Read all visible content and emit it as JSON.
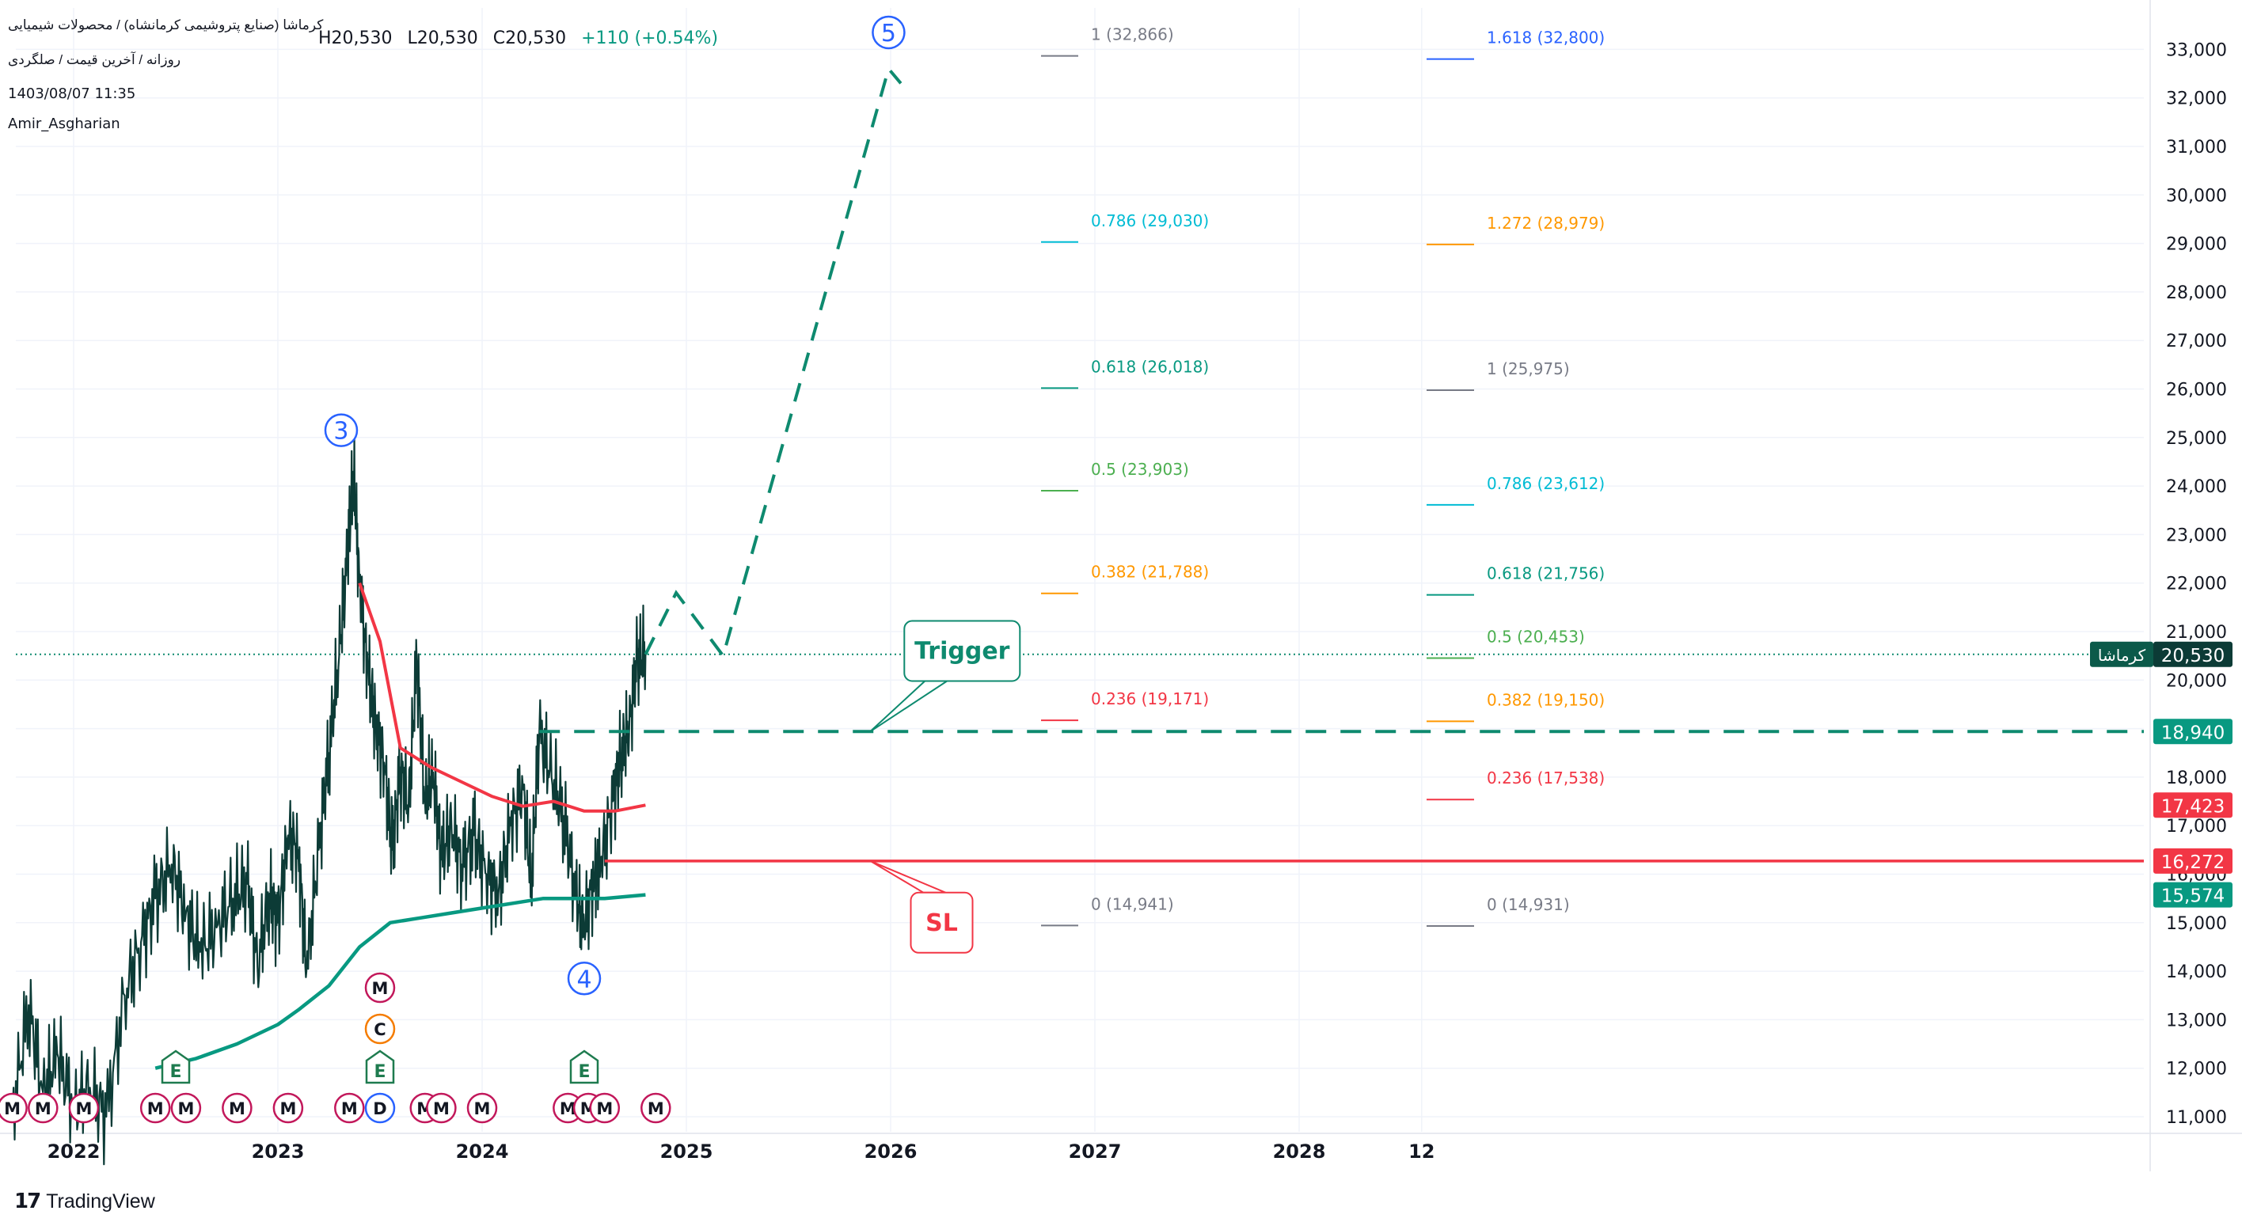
{
  "header": {
    "symbol_line": "کرماشا (صنایع پتروشیمی کرمانشاه) / محصولات شیمیایی",
    "high": "H20,530",
    "low": "L20,530",
    "close": "C20,530",
    "change": "+110 (+0.54%)",
    "sub_line": "روزانه / آخرین قیمت / صلگردی",
    "date": "1403/08/07 11:35",
    "author": "Amir_Asgharian"
  },
  "branding": {
    "name": "TradingView"
  },
  "colors": {
    "up": "#089981",
    "down": "#f23645",
    "ma_red": "#f23645",
    "ma_teal": "#089981",
    "candles": "#0c3b36",
    "target": "#0e8a6f",
    "wave_label": "#2962ff",
    "earnings": "#1e7b4f",
    "marker_m": "#c2185b",
    "marker_c": "#f57c00",
    "marker_d": "#2962ff"
  },
  "chart_data": {
    "type": "line",
    "title": "کرماشا",
    "x_axis": {
      "ticks": [
        "2022",
        "2023",
        "2024",
        "2025",
        "2026",
        "2027",
        "2028",
        "12"
      ]
    },
    "y_axis": {
      "ylim": [
        10500,
        33500
      ],
      "ticks": [
        "11,000",
        "12,000",
        "13,000",
        "14,000",
        "15,000",
        "16,000",
        "17,000",
        "18,000",
        "19,000",
        "20,000",
        "21,000",
        "22,000",
        "23,000",
        "24,000",
        "25,000",
        "26,000",
        "27,000",
        "28,000",
        "29,000",
        "30,000",
        "31,000",
        "32,000",
        "33,000"
      ],
      "scale": "linear",
      "position": "right"
    },
    "grid": true,
    "price_series": {
      "name": "کرماشا",
      "points": [
        [
          2021.7,
          11000
        ],
        [
          2021.78,
          13300
        ],
        [
          2021.85,
          11500
        ],
        [
          2021.92,
          12300
        ],
        [
          2022.0,
          11200
        ],
        [
          2022.08,
          11600
        ],
        [
          2022.16,
          11000
        ],
        [
          2022.25,
          13500
        ],
        [
          2022.33,
          14600
        ],
        [
          2022.4,
          15500
        ],
        [
          2022.48,
          16200
        ],
        [
          2022.55,
          15200
        ],
        [
          2022.62,
          14400
        ],
        [
          2022.7,
          14900
        ],
        [
          2022.78,
          15500
        ],
        [
          2022.85,
          15800
        ],
        [
          2022.9,
          14100
        ],
        [
          2022.96,
          15600
        ],
        [
          2023.0,
          15000
        ],
        [
          2023.05,
          16800
        ],
        [
          2023.1,
          16500
        ],
        [
          2023.14,
          14000
        ],
        [
          2023.2,
          16500
        ],
        [
          2023.25,
          18500
        ],
        [
          2023.3,
          20500
        ],
        [
          2023.34,
          22500
        ],
        [
          2023.37,
          24300
        ],
        [
          2023.4,
          22000
        ],
        [
          2023.44,
          20200
        ],
        [
          2023.48,
          19100
        ],
        [
          2023.52,
          18300
        ],
        [
          2023.56,
          16500
        ],
        [
          2023.6,
          18200
        ],
        [
          2023.64,
          17400
        ],
        [
          2023.68,
          20400
        ],
        [
          2023.72,
          17500
        ],
        [
          2023.76,
          18100
        ],
        [
          2023.8,
          16300
        ],
        [
          2023.85,
          17000
        ],
        [
          2023.9,
          16200
        ],
        [
          2023.96,
          16800
        ],
        [
          2024.02,
          16000
        ],
        [
          2024.08,
          15600
        ],
        [
          2024.14,
          17000
        ],
        [
          2024.2,
          17800
        ],
        [
          2024.24,
          15800
        ],
        [
          2024.28,
          18900
        ],
        [
          2024.34,
          18000
        ],
        [
          2024.4,
          17200
        ],
        [
          2024.46,
          15500
        ],
        [
          2024.5,
          14900
        ],
        [
          2024.55,
          16000
        ],
        [
          2024.58,
          16200
        ],
        [
          2024.64,
          17500
        ],
        [
          2024.68,
          18500
        ],
        [
          2024.72,
          19000
        ],
        [
          2024.76,
          20400
        ],
        [
          2024.8,
          20530
        ]
      ]
    },
    "ma_red": {
      "points": [
        [
          2023.4,
          22000
        ],
        [
          2023.5,
          20800
        ],
        [
          2023.6,
          18600
        ],
        [
          2023.75,
          18200
        ],
        [
          2023.9,
          17900
        ],
        [
          2024.05,
          17600
        ],
        [
          2024.2,
          17400
        ],
        [
          2024.35,
          17500
        ],
        [
          2024.5,
          17300
        ],
        [
          2024.65,
          17300
        ],
        [
          2024.8,
          17423
        ]
      ]
    },
    "ma_teal": {
      "points": [
        [
          2022.4,
          12000
        ],
        [
          2022.6,
          12200
        ],
        [
          2022.8,
          12500
        ],
        [
          2023.0,
          12900
        ],
        [
          2023.1,
          13200
        ],
        [
          2023.25,
          13700
        ],
        [
          2023.4,
          14500
        ],
        [
          2023.55,
          15000
        ],
        [
          2023.7,
          15100
        ],
        [
          2023.85,
          15200
        ],
        [
          2024.0,
          15300
        ],
        [
          2024.15,
          15400
        ],
        [
          2024.3,
          15500
        ],
        [
          2024.45,
          15500
        ],
        [
          2024.6,
          15500
        ],
        [
          2024.8,
          15574
        ]
      ]
    },
    "projection": {
      "points": [
        [
          2024.8,
          20530
        ],
        [
          2024.95,
          21800
        ],
        [
          2025.18,
          20500
        ],
        [
          2025.99,
          32600
        ],
        [
          2026.05,
          32300
        ]
      ]
    },
    "horizontal_levels": [
      {
        "name": "last",
        "price": 20530,
        "label": "20,530",
        "tag": "کرماشا",
        "style": "dotted"
      },
      {
        "name": "trigger",
        "price": 18940,
        "label": "18,940",
        "x_from": 2024.28,
        "style": "dashed"
      },
      {
        "name": "ma_red_value",
        "price": 17423,
        "label": "17,423"
      },
      {
        "name": "sl",
        "price": 16272,
        "label": "16,272",
        "x_from": 2024.6,
        "style": "solid"
      },
      {
        "name": "ma_teal_value",
        "price": 15574,
        "label": "15,574"
      }
    ],
    "fib_set_1": [
      {
        "ratio": "1",
        "price": 32866,
        "label": "1 (32,866)",
        "color": "#787b86"
      },
      {
        "ratio": "0.786",
        "price": 29030,
        "label": "0.786 (29,030)",
        "color": "#00bcd4"
      },
      {
        "ratio": "0.618",
        "price": 26018,
        "label": "0.618 (26,018)",
        "color": "#089981"
      },
      {
        "ratio": "0.5",
        "price": 23903,
        "label": "0.5 (23,903)",
        "color": "#4caf50"
      },
      {
        "ratio": "0.382",
        "price": 21788,
        "label": "0.382 (21,788)",
        "color": "#ff9800"
      },
      {
        "ratio": "0.236",
        "price": 19171,
        "label": "0.236 (19,171)",
        "color": "#f23645"
      },
      {
        "ratio": "0",
        "price": 14941,
        "label": "0 (14,941)",
        "color": "#787b86"
      }
    ],
    "fib_set_2": [
      {
        "ratio": "1.618",
        "price": 32800,
        "label": "1.618 (32,800)",
        "color": "#2962ff"
      },
      {
        "ratio": "1.272",
        "price": 28979,
        "label": "1.272 (28,979)",
        "color": "#ff9800"
      },
      {
        "ratio": "1",
        "price": 25975,
        "label": "1 (25,975)",
        "color": "#787b86"
      },
      {
        "ratio": "0.786",
        "price": 23612,
        "label": "0.786 (23,612)",
        "color": "#00bcd4"
      },
      {
        "ratio": "0.618",
        "price": 21756,
        "label": "0.618 (21,756)",
        "color": "#089981"
      },
      {
        "ratio": "0.5",
        "price": 20453,
        "label": "0.5 (20,453)",
        "color": "#4caf50"
      },
      {
        "ratio": "0.382",
        "price": 19150,
        "label": "0.382 (19,150)",
        "color": "#ff9800"
      },
      {
        "ratio": "0.236",
        "price": 17538,
        "label": "0.236 (17,538)",
        "color": "#f23645"
      },
      {
        "ratio": "0",
        "price": 14931,
        "label": "0 (14,931)",
        "color": "#787b86"
      }
    ],
    "wave_labels": [
      {
        "label": "3",
        "x": 2023.31,
        "price": 25150
      },
      {
        "label": "4",
        "x": 2024.5,
        "price": 13850
      },
      {
        "label": "5",
        "x": 2025.99,
        "price": 33350
      }
    ],
    "callouts": [
      {
        "label": "Trigger",
        "x": 2026.35,
        "price": 20600,
        "anchor_x": 2025.9,
        "anchor_price": 18940,
        "color": "#0e8a6f"
      },
      {
        "label": "SL",
        "x": 2026.25,
        "price": 15000,
        "anchor_x": 2025.9,
        "anchor_price": 16272,
        "color": "#f23645"
      }
    ],
    "events": {
      "earnings": [
        2022.5,
        2023.5,
        2024.5
      ],
      "markers_top": [
        {
          "x": 2023.5,
          "label": "M"
        },
        {
          "x": 2023.5,
          "label": "C"
        }
      ],
      "markers_bottom": [
        {
          "x": 2021.7,
          "label": "M"
        },
        {
          "x": 2021.85,
          "label": "M"
        },
        {
          "x": 2022.05,
          "label": "M"
        },
        {
          "x": 2022.4,
          "label": "M"
        },
        {
          "x": 2022.55,
          "label": "M"
        },
        {
          "x": 2022.8,
          "label": "M"
        },
        {
          "x": 2023.05,
          "label": "M"
        },
        {
          "x": 2023.35,
          "label": "M"
        },
        {
          "x": 2023.5,
          "label": "D"
        },
        {
          "x": 2023.72,
          "label": "M"
        },
        {
          "x": 2023.8,
          "label": "M"
        },
        {
          "x": 2024.0,
          "label": "M"
        },
        {
          "x": 2024.42,
          "label": "M"
        },
        {
          "x": 2024.52,
          "label": "M"
        },
        {
          "x": 2024.6,
          "label": "M"
        },
        {
          "x": 2024.85,
          "label": "M"
        }
      ]
    }
  }
}
